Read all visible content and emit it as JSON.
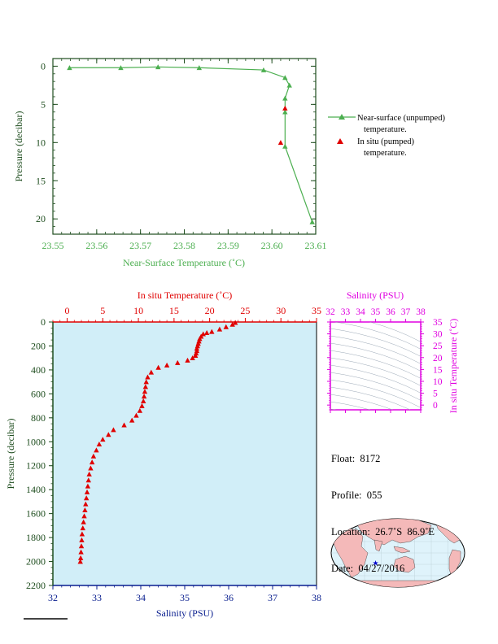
{
  "colors": {
    "green": "#4caf50",
    "dark_green": "#1e4d1e",
    "red": "#e00000",
    "navy": "#0a1f8f",
    "magenta": "#e000e0",
    "plot_fill": "#d1eef8",
    "land": "#f4b9b9",
    "ocean": "#dff3fb"
  },
  "chart_data": [
    {
      "type": "line",
      "xlabel": "Near-Surface Temperature (˚C)",
      "ylabel": "Pressure (decibar)",
      "xlim": [
        23.55,
        23.61
      ],
      "ylim": [
        22,
        -1
      ],
      "x_ticks": [
        "23.55",
        "23.56",
        "23.57",
        "23.58",
        "23.59",
        "23.60",
        "23.61"
      ],
      "y_ticks": [
        "0",
        "5",
        "10",
        "15",
        "20"
      ],
      "legend_position": "right",
      "series": [
        {
          "name": "Near-surface (unpumped) temperature.",
          "marker": "triangle",
          "color": "green",
          "points": [
            [
              23.5538,
              0.2
            ],
            [
              23.5655,
              0.2
            ],
            [
              23.574,
              0.1
            ],
            [
              23.5834,
              0.2
            ],
            [
              23.5981,
              0.5
            ],
            [
              23.603,
              1.5
            ],
            [
              23.604,
              2.5
            ],
            [
              23.603,
              4.2
            ],
            [
              23.603,
              6.0
            ],
            [
              23.603,
              10.5
            ],
            [
              23.6092,
              20.4
            ]
          ]
        },
        {
          "name": "In situ (pumped) temperature.",
          "marker": "triangle",
          "color": "red",
          "points": [
            [
              23.603,
              5.5
            ],
            [
              23.602,
              10.0
            ]
          ]
        }
      ]
    },
    {
      "type": "scatter",
      "xlabel_bottom": "Salinity (PSU)",
      "xlabel_top": "In situ Temperature (˚C)",
      "ylabel": "Pressure (decibar)",
      "top_xlim": [
        -2,
        35
      ],
      "bottom_xlim": [
        32,
        38
      ],
      "ylim": [
        2200,
        0
      ],
      "top_ticks": [
        "0",
        "5",
        "10",
        "15",
        "20",
        "25",
        "30",
        "35"
      ],
      "bottom_ticks": [
        "32",
        "33",
        "34",
        "35",
        "36",
        "37",
        "38"
      ],
      "y_ticks": [
        "0",
        "200",
        "400",
        "600",
        "800",
        "1000",
        "1200",
        "1400",
        "1600",
        "1800",
        "2000",
        "2200"
      ],
      "series": [
        {
          "name": "In situ Temperature",
          "marker": "triangle",
          "color": "red",
          "points": [
            [
              23.6,
              5
            ],
            [
              23.2,
              20
            ],
            [
              22.3,
              40
            ],
            [
              21.4,
              60
            ],
            [
              20.3,
              80
            ],
            [
              19.6,
              90
            ],
            [
              19.1,
              100
            ],
            [
              18.8,
              120
            ],
            [
              18.6,
              140
            ],
            [
              18.5,
              160
            ],
            [
              18.4,
              180
            ],
            [
              18.3,
              200
            ],
            [
              18.2,
              220
            ],
            [
              18.2,
              240
            ],
            [
              18.1,
              260
            ],
            [
              18.0,
              280
            ],
            [
              17.6,
              300
            ],
            [
              16.9,
              320
            ],
            [
              15.5,
              340
            ],
            [
              14.0,
              360
            ],
            [
              12.8,
              380
            ],
            [
              11.8,
              420
            ],
            [
              11.3,
              460
            ],
            [
              11.1,
              500
            ],
            [
              11.0,
              540
            ],
            [
              10.9,
              580
            ],
            [
              10.8,
              620
            ],
            [
              10.7,
              660
            ],
            [
              10.5,
              700
            ],
            [
              10.2,
              740
            ],
            [
              9.7,
              780
            ],
            [
              9.1,
              820
            ],
            [
              8.0,
              860
            ],
            [
              6.5,
              900
            ],
            [
              5.8,
              940
            ],
            [
              5.0,
              980
            ],
            [
              4.5,
              1020
            ],
            [
              4.1,
              1070
            ],
            [
              3.7,
              1120
            ],
            [
              3.5,
              1170
            ],
            [
              3.3,
              1220
            ],
            [
              3.1,
              1270
            ],
            [
              3.0,
              1320
            ],
            [
              2.9,
              1370
            ],
            [
              2.8,
              1420
            ],
            [
              2.7,
              1470
            ],
            [
              2.6,
              1520
            ],
            [
              2.5,
              1570
            ],
            [
              2.4,
              1620
            ],
            [
              2.3,
              1670
            ],
            [
              2.2,
              1720
            ],
            [
              2.1,
              1770
            ],
            [
              2.05,
              1820
            ],
            [
              2.0,
              1870
            ],
            [
              1.95,
              1920
            ],
            [
              1.9,
              1970
            ],
            [
              1.85,
              2000
            ]
          ]
        }
      ]
    },
    {
      "type": "scatter",
      "title": "Salinity (PSU)",
      "ylabel": "In situ Temperature (˚C)",
      "xlim": [
        32,
        38
      ],
      "ylim": [
        -2,
        35
      ],
      "x_ticks": [
        "32",
        "33",
        "34",
        "35",
        "36",
        "37",
        "38"
      ],
      "y_ticks": [
        "0",
        "5",
        "10",
        "15",
        "20",
        "25",
        "30",
        "35"
      ],
      "series": []
    }
  ],
  "float_info": {
    "float_line": "Float:  8172",
    "profile_line": "Profile:  055",
    "location_line": "Location:  26.7˚S  86.9˚E",
    "date_line": "Date:  04/27/2016"
  },
  "map": {
    "marker": "star",
    "position_label": "26.7˚S 86.9˚E"
  }
}
